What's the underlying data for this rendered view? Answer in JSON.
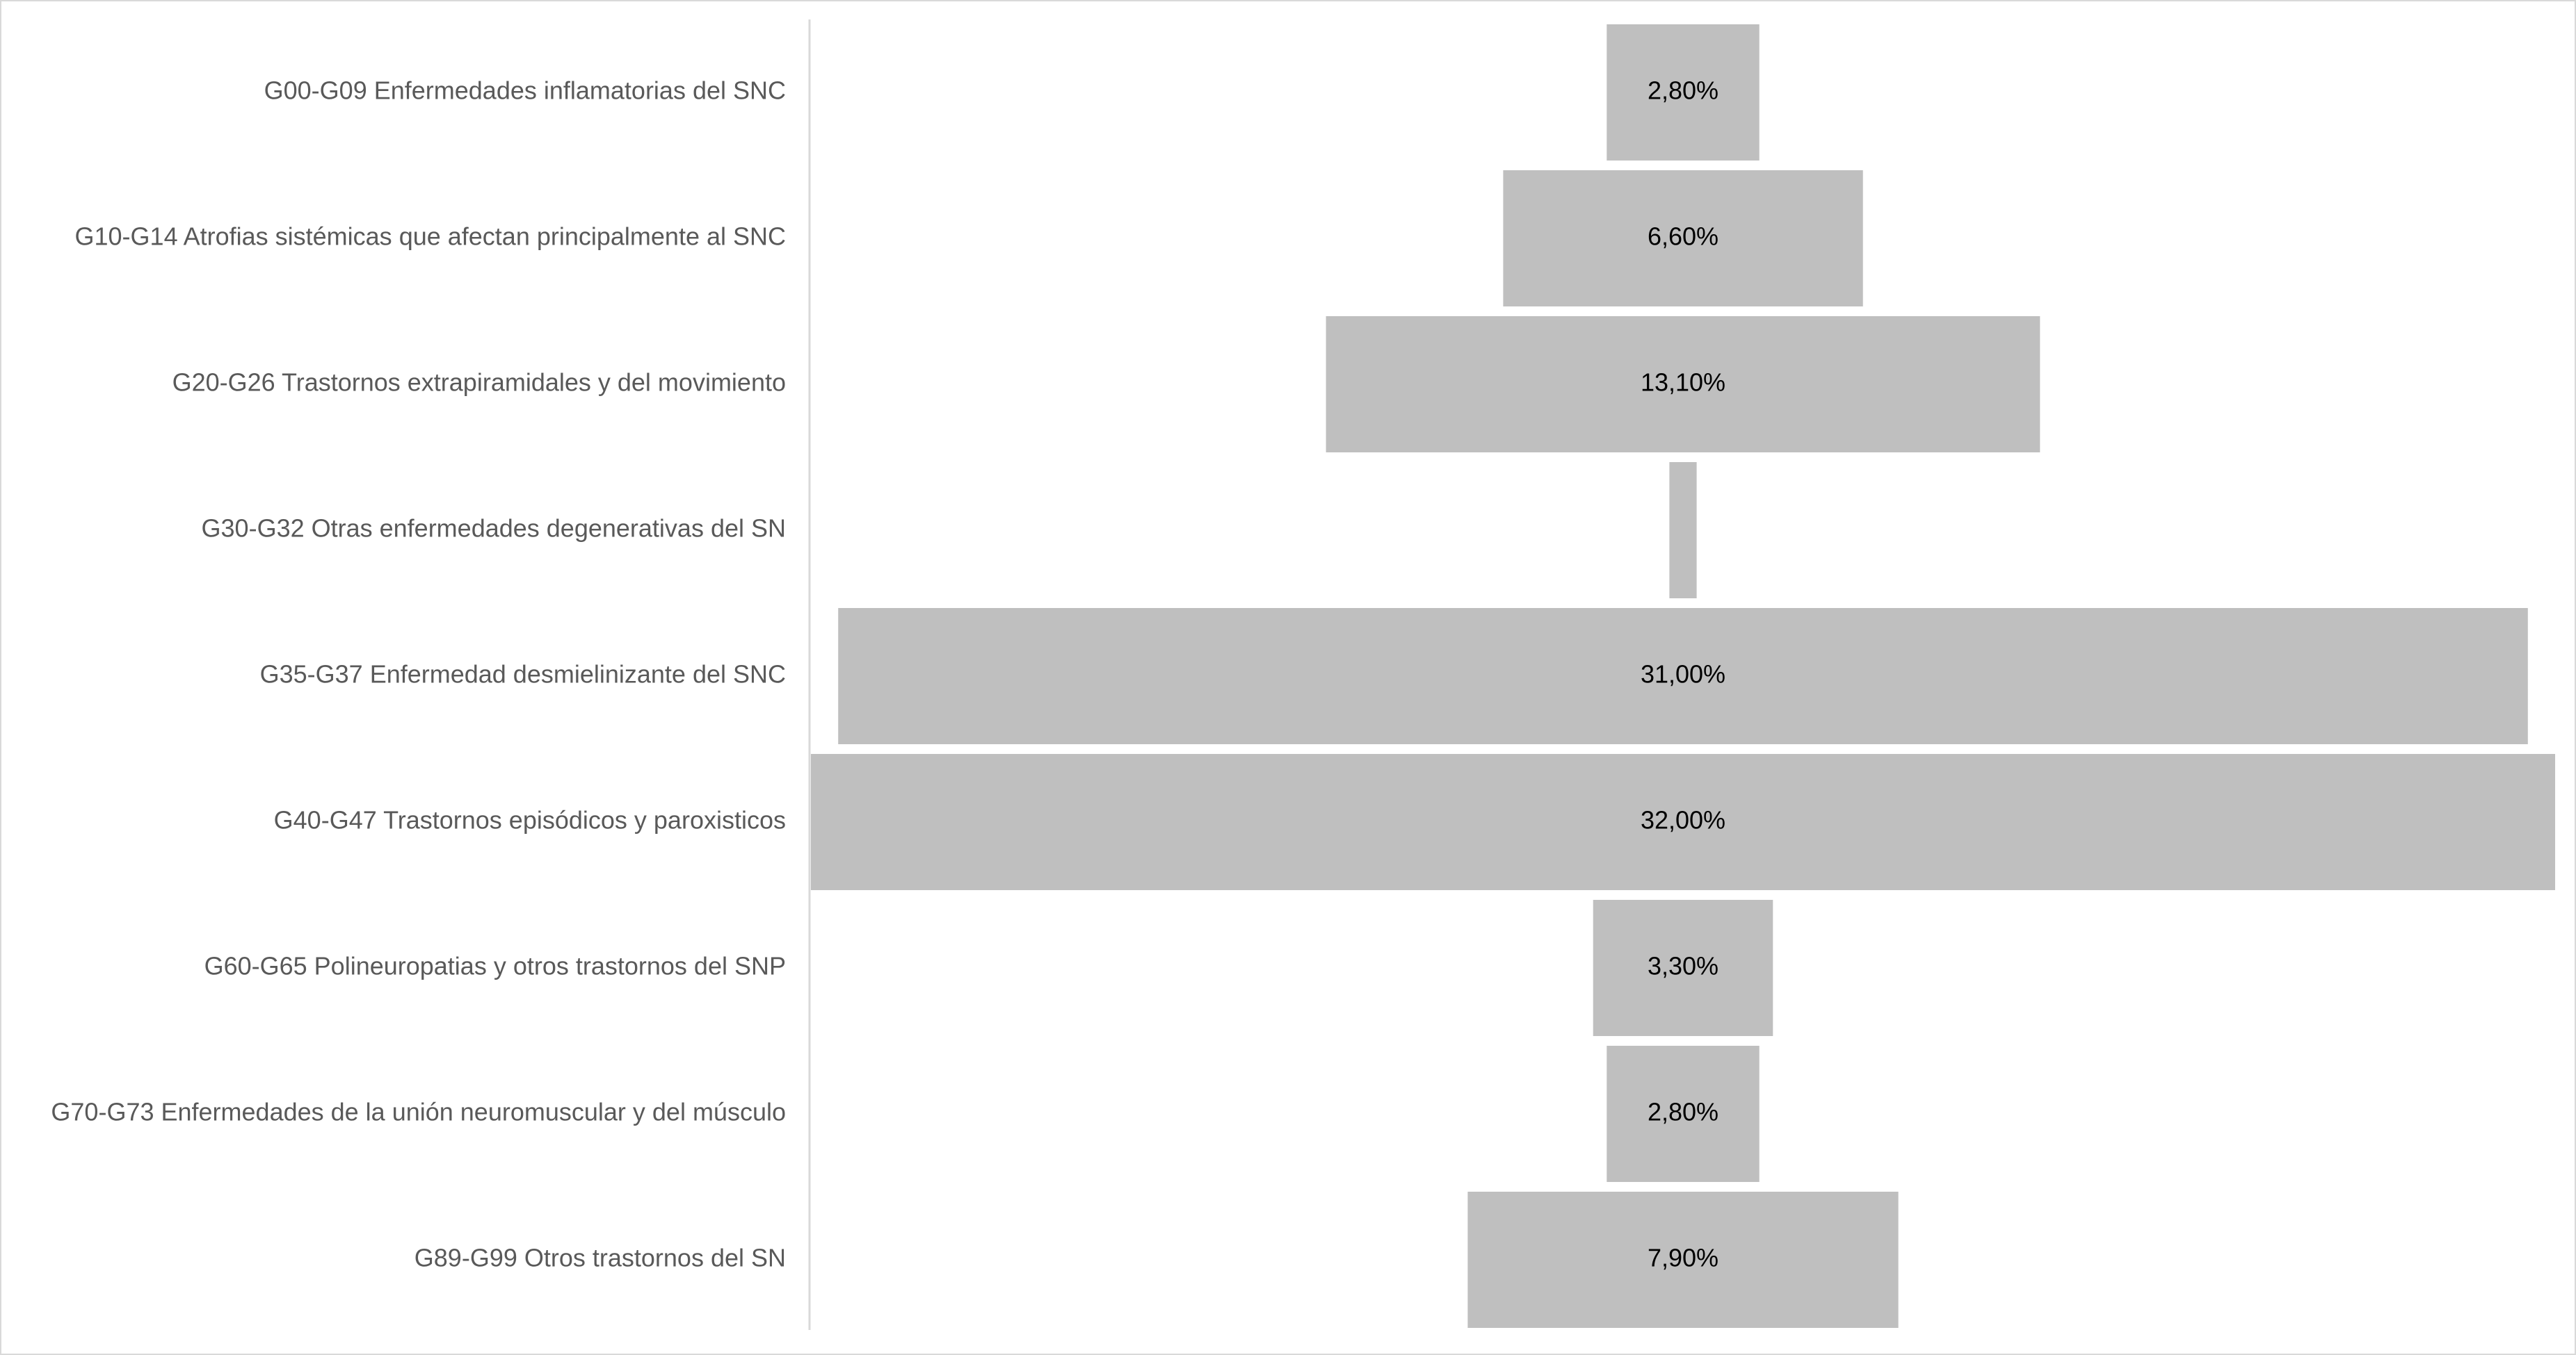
{
  "chart_data": {
    "type": "bar",
    "orientation": "horizontal",
    "style": "funnel",
    "categories": [
      "G00-G09 Enfermedades inflamatorias del SNC",
      "G10-G14 Atrofias sistémicas que afectan principalmente al SNC",
      "G20-G26 Trastornos extrapiramidales y del movimiento",
      "G30-G32 Otras enfermedades degenerativas del SN",
      "G35-G37 Enfermedad desmielinizante del SNC",
      "G40-G47 Trastornos episódicos y paroxisticos",
      "G60-G65 Polineuropatias y otros trastornos del SNP",
      "G70-G73 Enfermedades de la unión neuromuscular y del músculo",
      "G89-G99 Otros trastornos del SN"
    ],
    "values": [
      2.8,
      6.6,
      13.1,
      0.5,
      31.0,
      32.0,
      3.3,
      2.8,
      7.9
    ],
    "data_labels": [
      "2,80%",
      "6,60%",
      "13,10%",
      "",
      "31,00%",
      "32,00%",
      "3,30%",
      "2,80%",
      "7,90%"
    ],
    "unit": "%",
    "xlim": [
      0,
      32
    ],
    "bar_color": "#bfbfbf",
    "axis_color": "#d9d9d9",
    "label_color": "#595959",
    "data_label_color": "#000000",
    "title": "",
    "xlabel": "",
    "ylabel": "",
    "grid": false,
    "legend": "none"
  }
}
